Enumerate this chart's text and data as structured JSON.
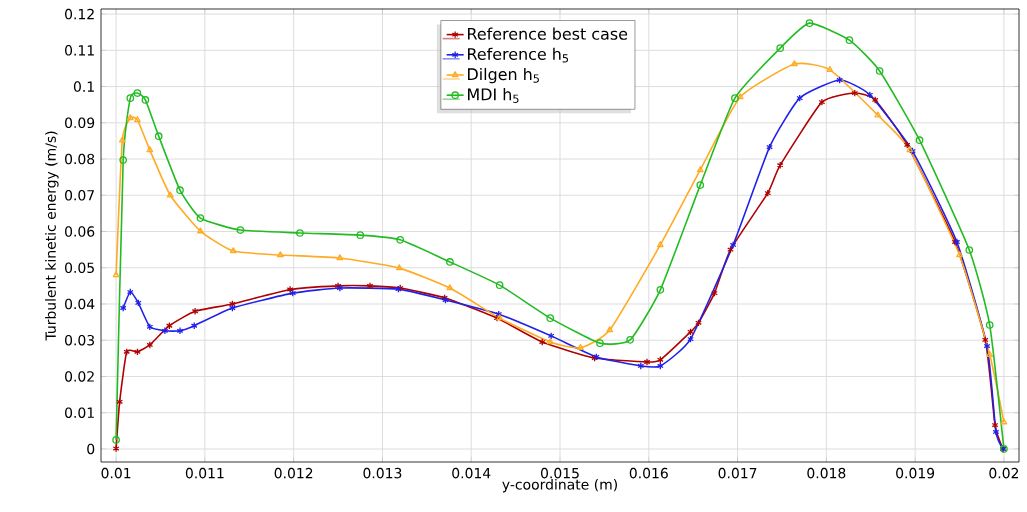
{
  "chart_data": {
    "type": "line",
    "xlabel": "y-coordinate (m)",
    "ylabel": "Turbulent kinetic energy (m/s)",
    "xlim": [
      0.00983,
      0.02017
    ],
    "ylim": [
      -0.0036,
      0.1214
    ],
    "xticks": [
      0.01,
      0.011,
      0.012,
      0.013,
      0.014,
      0.015,
      0.016,
      0.017,
      0.018,
      0.019,
      0.02
    ],
    "yticks": [
      0,
      0.01,
      0.02,
      0.03,
      0.04,
      0.05,
      0.06,
      0.07,
      0.08,
      0.09,
      0.1,
      0.11,
      0.12
    ],
    "grid": true,
    "legend": "top",
    "line_style": "solid",
    "series": [
      {
        "name": "Reference best case",
        "color": "#b00000",
        "marker": "cross",
        "x": [
          0.01,
          0.01004,
          0.01012,
          0.01024,
          0.01038,
          0.0106,
          0.01089,
          0.01131,
          0.01196,
          0.0125,
          0.01286,
          0.0132,
          0.0137,
          0.01429,
          0.0148,
          0.01539,
          0.01598,
          0.01613,
          0.01647,
          0.01656,
          0.01674,
          0.01692,
          0.01734,
          0.01748,
          0.01795,
          0.01832,
          0.01855,
          0.01891,
          0.01945,
          0.01979,
          0.0199,
          0.01999
        ],
        "values": [
          0.0001,
          0.013,
          0.0268,
          0.0268,
          0.0287,
          0.034,
          0.038,
          0.04,
          0.044,
          0.045,
          0.045,
          0.0444,
          0.0417,
          0.0361,
          0.0295,
          0.0251,
          0.024,
          0.0246,
          0.0323,
          0.0348,
          0.043,
          0.055,
          0.0706,
          0.0783,
          0.0957,
          0.0982,
          0.0963,
          0.0839,
          0.0571,
          0.0301,
          0.0066,
          0
        ]
      },
      {
        "name": "Reference h$_{5}$",
        "color": "#2020e8",
        "marker": "cross",
        "x": [
          0.01008,
          0.01016,
          0.01025,
          0.01038,
          0.01055,
          0.01072,
          0.01088,
          0.01131,
          0.01199,
          0.01252,
          0.01318,
          0.01371,
          0.01431,
          0.0149,
          0.01541,
          0.01591,
          0.01613,
          0.01647,
          0.01695,
          0.01736,
          0.0177,
          0.01815,
          0.01849,
          0.01897,
          0.01947,
          0.01981,
          0.01991,
          0.01999
        ],
        "values": [
          0.0389,
          0.0433,
          0.0403,
          0.0337,
          0.0326,
          0.0326,
          0.034,
          0.0389,
          0.043,
          0.0444,
          0.0441,
          0.0411,
          0.0372,
          0.0312,
          0.0254,
          0.0229,
          0.0229,
          0.0303,
          0.0563,
          0.0833,
          0.0968,
          0.1018,
          0.0977,
          0.0822,
          0.0571,
          0.0284,
          0.0047,
          0
        ]
      },
      {
        "name": "Dilgen h$_{5}$",
        "color": "#ffaa22",
        "marker": "triangle",
        "x": [
          0.01,
          0.01007,
          0.01016,
          0.01024,
          0.01038,
          0.01061,
          0.01095,
          0.01132,
          0.01185,
          0.01252,
          0.01319,
          0.01376,
          0.01432,
          0.01489,
          0.01523,
          0.01556,
          0.01613,
          0.01658,
          0.01703,
          0.01764,
          0.01804,
          0.01858,
          0.01894,
          0.0195,
          0.01984,
          0.02
        ],
        "values": [
          0.048,
          0.0852,
          0.0913,
          0.0908,
          0.0825,
          0.07,
          0.0601,
          0.0546,
          0.0535,
          0.0527,
          0.0499,
          0.0444,
          0.0361,
          0.0295,
          0.0279,
          0.0328,
          0.0563,
          0.077,
          0.0971,
          0.1062,
          0.1046,
          0.0921,
          0.0825,
          0.0535,
          0.026,
          0.0074
        ]
      },
      {
        "name": "MDI h$_{5}$",
        "color": "#22bb22",
        "marker": "circle",
        "x": [
          0.01,
          0.01008,
          0.01016,
          0.01024,
          0.01033,
          0.01048,
          0.01072,
          0.01095,
          0.0114,
          0.01207,
          0.01275,
          0.0132,
          0.01376,
          0.01432,
          0.01489,
          0.01545,
          0.01579,
          0.01613,
          0.01658,
          0.01697,
          0.01748,
          0.01781,
          0.01826,
          0.0186,
          0.01905,
          0.01961,
          0.01984,
          0.02
        ],
        "values": [
          0.0025,
          0.0797,
          0.0968,
          0.0982,
          0.0963,
          0.0863,
          0.0714,
          0.0637,
          0.0604,
          0.0596,
          0.059,
          0.0577,
          0.0516,
          0.0452,
          0.0361,
          0.0292,
          0.0301,
          0.0439,
          0.0728,
          0.0968,
          0.1106,
          0.1175,
          0.1128,
          0.1043,
          0.0852,
          0.0549,
          0.0342,
          0
        ]
      }
    ]
  }
}
